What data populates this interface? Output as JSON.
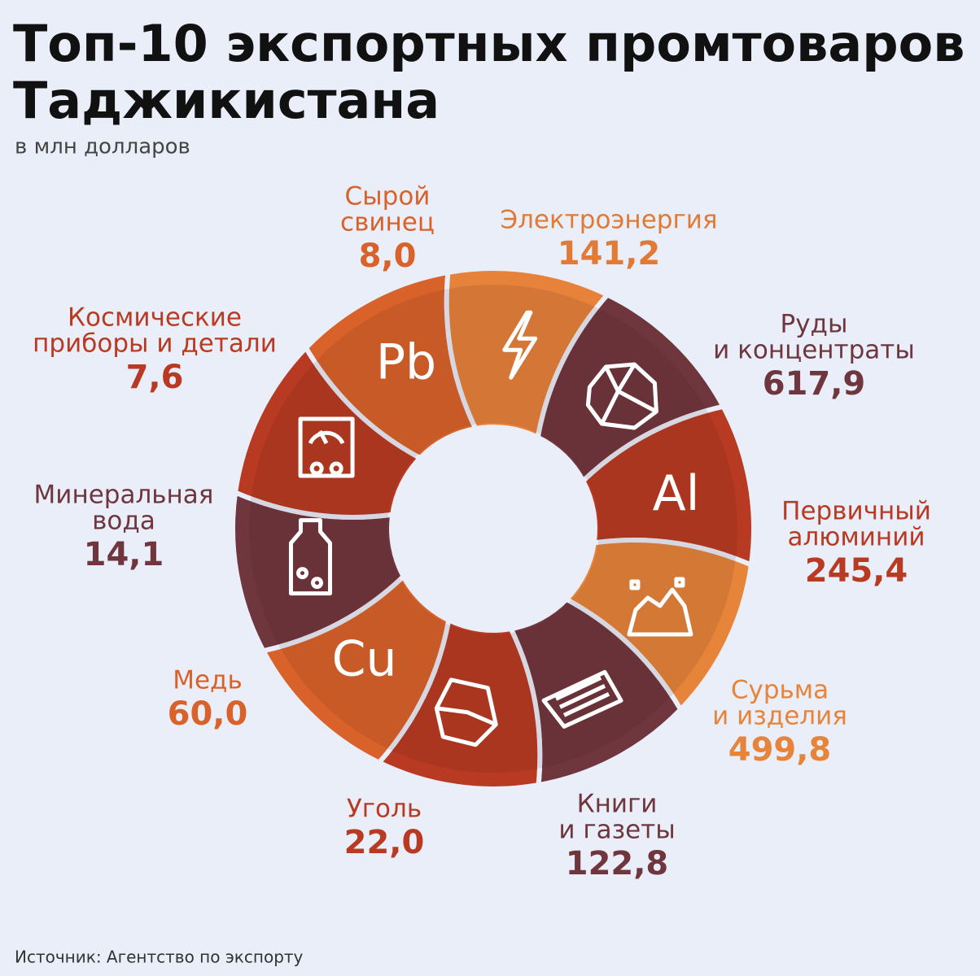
{
  "header": {
    "title": [
      "Топ-10 экспортных промтоваров",
      "Таджикистана"
    ],
    "subtitle": "в млн долларов"
  },
  "items": [
    {
      "name": [
        "Сырой",
        "свинец"
      ],
      "value": "8,0",
      "symbol": "Pb"
    },
    {
      "name": [
        "Электроэнергия"
      ],
      "value": "141,2"
    },
    {
      "name": [
        "Руды",
        "и концентраты"
      ],
      "value": "617,9"
    },
    {
      "name": [
        "Первичный",
        "алюминий"
      ],
      "value": "245,4",
      "symbol": "Al"
    },
    {
      "name": [
        "Сурьма",
        "и изделия"
      ],
      "value": "499,8"
    },
    {
      "name": [
        "Книги",
        "и газеты"
      ],
      "value": "122,8"
    },
    {
      "name": [
        "Уголь"
      ],
      "value": "22,0"
    },
    {
      "name": [
        "Медь"
      ],
      "value": "60,0",
      "symbol": "Cu"
    },
    {
      "name": [
        "Минеральная",
        "вода"
      ],
      "value": "14,1"
    },
    {
      "name": [
        "Космические",
        "приборы и детали"
      ],
      "value": "7,6"
    }
  ],
  "footer": {
    "source": "Источник: Агентство по экспорту"
  }
}
